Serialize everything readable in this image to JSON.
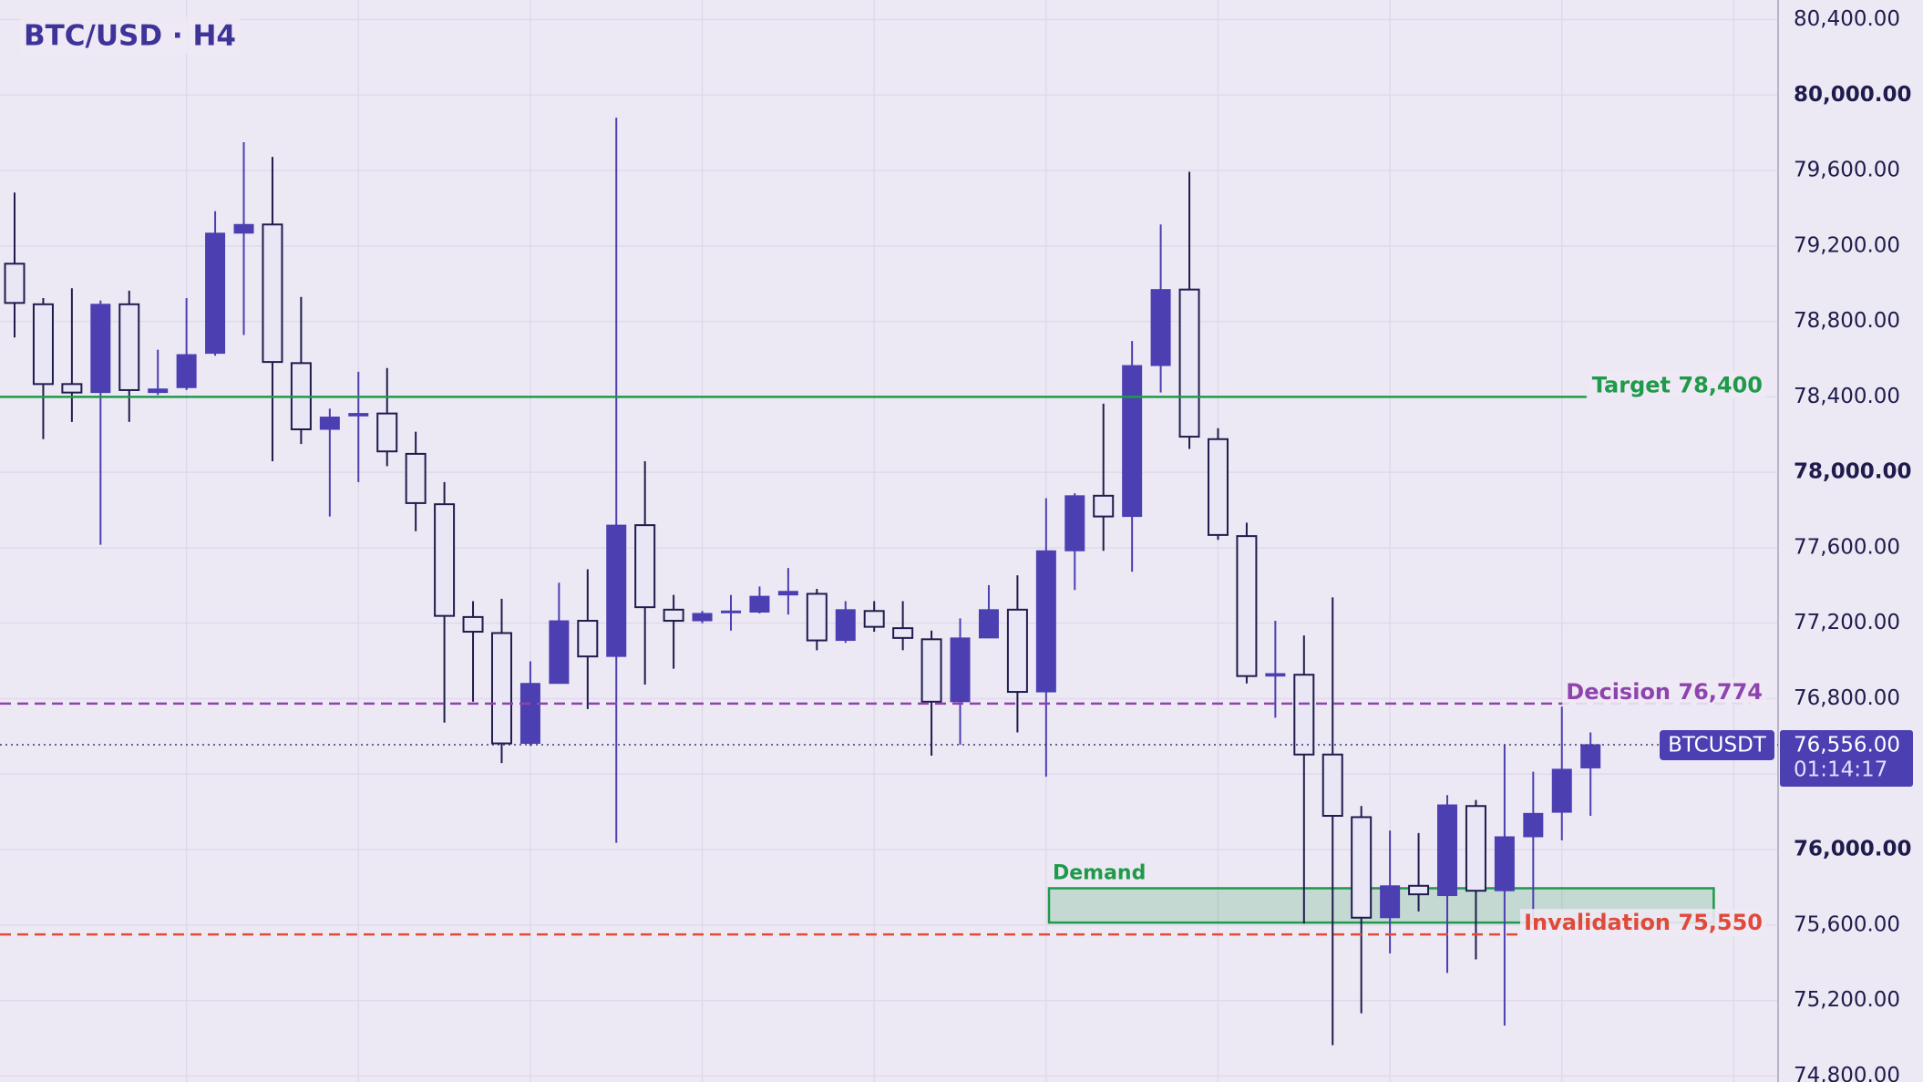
{
  "chart_data": {
    "type": "candlestick",
    "title": "BTC/USD · H4",
    "open": [
      79106,
      78891,
      78468,
      78423,
      78891,
      78423,
      78449,
      78631,
      79268,
      79314,
      78579,
      78228,
      78299,
      78312,
      78098,
      77831,
      77233,
      77148,
      76563,
      76881,
      77213,
      77024,
      77720,
      77272,
      77213,
      77259,
      77259,
      77350,
      77356,
      77109,
      77265,
      77174,
      77115,
      76784,
      77122,
      77272,
      76836,
      77584,
      77876,
      77766,
      78566,
      78969,
      78176,
      77662,
      76920,
      76927,
      76504,
      76172,
      75639,
      75808,
      75756,
      76231,
      75782,
      76068,
      76198,
      76433
    ],
    "high": [
      79483,
      78924,
      78976,
      78911,
      78963,
      78650,
      78924,
      79385,
      79750,
      79672,
      78930,
      78338,
      78533,
      78553,
      78215,
      77948,
      77317,
      77330,
      76998,
      77415,
      77486,
      79880,
      78059,
      77350,
      77265,
      77350,
      77395,
      77493,
      77382,
      77317,
      77317,
      77317,
      77161,
      77226,
      77402,
      77454,
      77863,
      77889,
      78364,
      78696,
      79314,
      79593,
      78234,
      77733,
      77213,
      77135,
      77337,
      76231,
      76101,
      76088,
      76289,
      76263,
      76556,
      76413,
      76758,
      76621
    ],
    "low": [
      78715,
      78176,
      78267,
      77616,
      78267,
      78410,
      78436,
      78618,
      78728,
      78059,
      78150,
      77766,
      77948,
      78033,
      77688,
      76673,
      76784,
      76459,
      76550,
      76881,
      76745,
      76036,
      76875,
      76959,
      77200,
      77161,
      77252,
      77246,
      77057,
      77096,
      77155,
      77057,
      76498,
      76556,
      77122,
      76621,
      76387,
      77376,
      77584,
      77473,
      78423,
      78124,
      77642,
      76881,
      76699,
      75607,
      74963,
      75132,
      75450,
      75672,
      75346,
      75418,
      75067,
      75626,
      76049,
      76179
    ],
    "close": [
      78898,
      78468,
      78423,
      78891,
      78436,
      78442,
      78624,
      79268,
      79314,
      78585,
      78228,
      78293,
      78312,
      78111,
      77837,
      77239,
      77155,
      76563,
      76881,
      77213,
      77024,
      77720,
      77285,
      77213,
      77252,
      77265,
      77343,
      77369,
      77109,
      77272,
      77181,
      77122,
      76784,
      77122,
      77272,
      76836,
      77584,
      77876,
      77766,
      78566,
      78969,
      78189,
      77668,
      76920,
      76933,
      76504,
      76179,
      75639,
      75808,
      75763,
      76237,
      75782,
      76068,
      76192,
      76426,
      76556
    ],
    "up_color": "#4b3fb2",
    "down_color": "#e9e6f6",
    "down_stroke": "#1f1c4d",
    "ylim": [
      74768,
      80504
    ],
    "yticks": [
      {
        "value": 74800,
        "label": "74,800.00"
      },
      {
        "value": 75200,
        "label": "75,200.00"
      },
      {
        "value": 75600,
        "label": "75,600.00"
      },
      {
        "value": 76000,
        "label": "76,000.00"
      },
      {
        "value": 76400,
        "label": "76,400.00"
      },
      {
        "value": 76800,
        "label": "76,800.00"
      },
      {
        "value": 77200,
        "label": "77,200.00"
      },
      {
        "value": 77600,
        "label": "77,600.00"
      },
      {
        "value": 78000,
        "label": "78,000.00"
      },
      {
        "value": 78400,
        "label": "78,400.00"
      },
      {
        "value": 78800,
        "label": "78,800.00"
      },
      {
        "value": 79200,
        "label": "79,200.00"
      },
      {
        "value": 79600,
        "label": "79,600.00"
      },
      {
        "value": 80000,
        "label": "80,000.00"
      },
      {
        "value": 80400,
        "label": "80,400.00"
      }
    ],
    "grid": true,
    "levels": [
      {
        "label": "Target 78,400",
        "value": 78400,
        "color": "#1f9a4a",
        "style": "solid"
      },
      {
        "label": "Decision 76,774",
        "value": 76774,
        "color": "#8e44ad",
        "style": "dashed"
      },
      {
        "label": "Invalidation 75,550",
        "value": 75550,
        "color": "#e04a3a",
        "style": "dashed"
      }
    ],
    "zones": [
      {
        "label": "Demand",
        "top": 75795,
        "bottom": 75613,
        "color": "#1f9a4a"
      }
    ],
    "last_price": {
      "value": 76556,
      "label": "76,556.00"
    },
    "symbol": "BTCUSDT",
    "countdown": "01:14:17"
  }
}
